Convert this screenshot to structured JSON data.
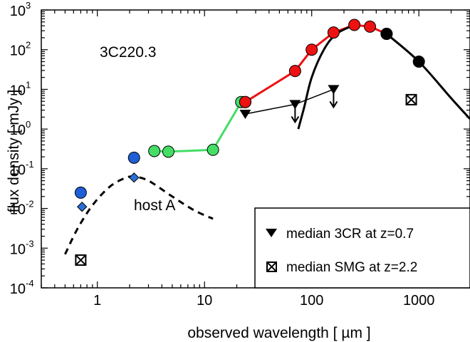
{
  "chart_data": {
    "type": "scatter",
    "title": "",
    "label": "3C220.3",
    "xlabel": "observed wavelength   [ µm ]",
    "ylabel": "flux density   [ mJy ]",
    "x_scale": "log",
    "y_scale": "log",
    "xlim": [
      0.3,
      3000
    ],
    "ylim": [
      0.0001,
      1000
    ],
    "x_ticks": [
      {
        "value": 1,
        "label": "1"
      },
      {
        "value": 10,
        "label": "10"
      },
      {
        "value": 100,
        "label": "100"
      },
      {
        "value": 1000,
        "label": "1000"
      }
    ],
    "y_ticks": [
      {
        "value": 0.0001,
        "base": "10",
        "exp": "-4"
      },
      {
        "value": 0.001,
        "base": "10",
        "exp": "-3"
      },
      {
        "value": 0.01,
        "base": "10",
        "exp": "-2"
      },
      {
        "value": 0.1,
        "base": "10",
        "exp": "-1"
      },
      {
        "value": 1,
        "base": "10",
        "exp": "0"
      },
      {
        "value": 10,
        "base": "10",
        "exp": "1"
      },
      {
        "value": 100,
        "base": "10",
        "exp": "2"
      },
      {
        "value": 1000,
        "base": "10",
        "exp": "3"
      }
    ],
    "annotations": [
      {
        "text": "host A"
      }
    ],
    "legend": {
      "placement": "bottom-right",
      "entries": [
        {
          "marker": "down-triangle",
          "label": "median 3CR  at z=0.7"
        },
        {
          "marker": "boxed-x",
          "label": "median SMG at z=2.2"
        }
      ]
    },
    "series": [
      {
        "marker": "circle",
        "color": "#1f5fd6",
        "x": [
          0.7,
          2.2
        ],
        "y": [
          0.025,
          0.19
        ]
      },
      {
        "marker": "diamond",
        "color": "#2a6fd8",
        "x": [
          0.72,
          2.2
        ],
        "y": [
          0.011,
          0.06
        ]
      },
      {
        "style": "dashed-line",
        "color": "#000000",
        "x": [
          0.5,
          0.65,
          0.9,
          1.3,
          1.8,
          2.2,
          3.0,
          5.0,
          8.0,
          12.0
        ],
        "y": [
          0.0007,
          0.003,
          0.012,
          0.035,
          0.058,
          0.063,
          0.05,
          0.02,
          0.009,
          0.0055
        ]
      },
      {
        "marker": "circle",
        "color": "#44dd66",
        "line": true,
        "x": [
          3.4,
          4.6,
          12,
          22,
          24
        ],
        "y": [
          0.28,
          0.27,
          0.3,
          4.8,
          4.8
        ]
      },
      {
        "marker": "circle",
        "color": "#ee1111",
        "line": true,
        "x": [
          24,
          70,
          100,
          160,
          250,
          350,
          500
        ],
        "y": [
          4.8,
          29,
          100,
          270,
          420,
          380,
          250
        ]
      },
      {
        "marker": "circle",
        "color": "#000000",
        "line": true,
        "x": [
          500,
          1000,
          2000,
          3000
        ],
        "y": [
          250,
          50,
          6,
          1.8
        ]
      },
      {
        "style": "solid-line",
        "color": "#000000",
        "x": [
          75,
          85,
          100,
          130,
          170,
          250
        ],
        "y": [
          1.0,
          3.5,
          20,
          100,
          250,
          420
        ]
      },
      {
        "marker": "down-triangle",
        "color": "#000000",
        "line": true,
        "upper_limits": [
          70,
          160
        ],
        "x": [
          24,
          70,
          160
        ],
        "y": [
          2.4,
          4.2,
          10
        ]
      },
      {
        "marker": "boxed-x",
        "color": "#000000",
        "x": [
          0.7,
          850
        ],
        "y": [
          0.0005,
          5.5
        ]
      }
    ]
  }
}
